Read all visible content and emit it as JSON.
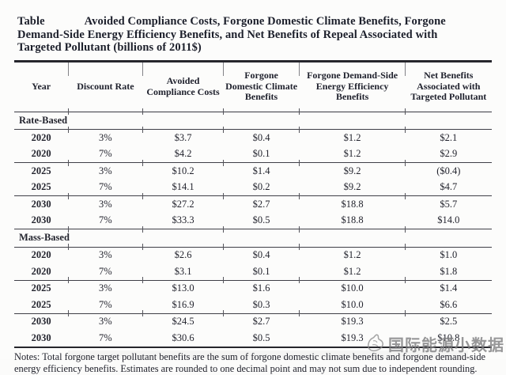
{
  "title": {
    "prefix": "Table",
    "text": "Avoided Compliance Costs, Forgone Domestic Climate Benefits, Forgone Demand-Side Energy Efficiency Benefits, and Net Benefits of Repeal Associated with Targeted Pollutant (billions of 2011$)"
  },
  "table": {
    "columns": [
      "Year",
      "Discount Rate",
      "Avoided Compliance Costs",
      "Forgone Domestic Climate Benefits",
      "Forgone Demand-Side Energy Efficiency Benefits",
      "Net Benefits Associated with Targeted Pollutant"
    ],
    "sections": [
      {
        "label": "Rate-Based",
        "rows": [
          [
            "2020",
            "3%",
            "$3.7",
            "$0.4",
            "$1.2",
            "$2.1"
          ],
          [
            "2020",
            "7%",
            "$4.2",
            "$0.1",
            "$1.2",
            "$2.9"
          ],
          [
            "2025",
            "3%",
            "$10.2",
            "$1.4",
            "$9.2",
            "($0.4)"
          ],
          [
            "2025",
            "7%",
            "$14.1",
            "$0.2",
            "$9.2",
            "$4.7"
          ],
          [
            "2030",
            "3%",
            "$27.2",
            "$2.7",
            "$18.8",
            "$5.7"
          ],
          [
            "2030",
            "7%",
            "$33.3",
            "$0.5",
            "$18.8",
            "$14.0"
          ]
        ]
      },
      {
        "label": "Mass-Based",
        "rows": [
          [
            "2020",
            "3%",
            "$2.6",
            "$0.4",
            "$1.2",
            "$1.0"
          ],
          [
            "2020",
            "7%",
            "$3.1",
            "$0.1",
            "$1.2",
            "$1.8"
          ],
          [
            "2025",
            "3%",
            "$13.0",
            "$1.6",
            "$10.0",
            "$1.4"
          ],
          [
            "2025",
            "7%",
            "$16.9",
            "$0.3",
            "$10.0",
            "$6.6"
          ],
          [
            "2030",
            "3%",
            "$24.5",
            "$2.7",
            "$19.3",
            "$2.5"
          ],
          [
            "2030",
            "7%",
            "$30.6",
            "$0.5",
            "$19.3",
            "$10.8"
          ]
        ]
      }
    ]
  },
  "notes": "Notes: Total forgone target pollutant benefits are the sum of forgone domestic climate benefits and forgone demand-side energy efficiency benefits. Estimates are rounded to one decimal point and may not sum due to independent rounding.",
  "watermark": {
    "text": "国际能源小数据",
    "icon": "hand-doodle-icon",
    "color": "#8f8f90"
  }
}
